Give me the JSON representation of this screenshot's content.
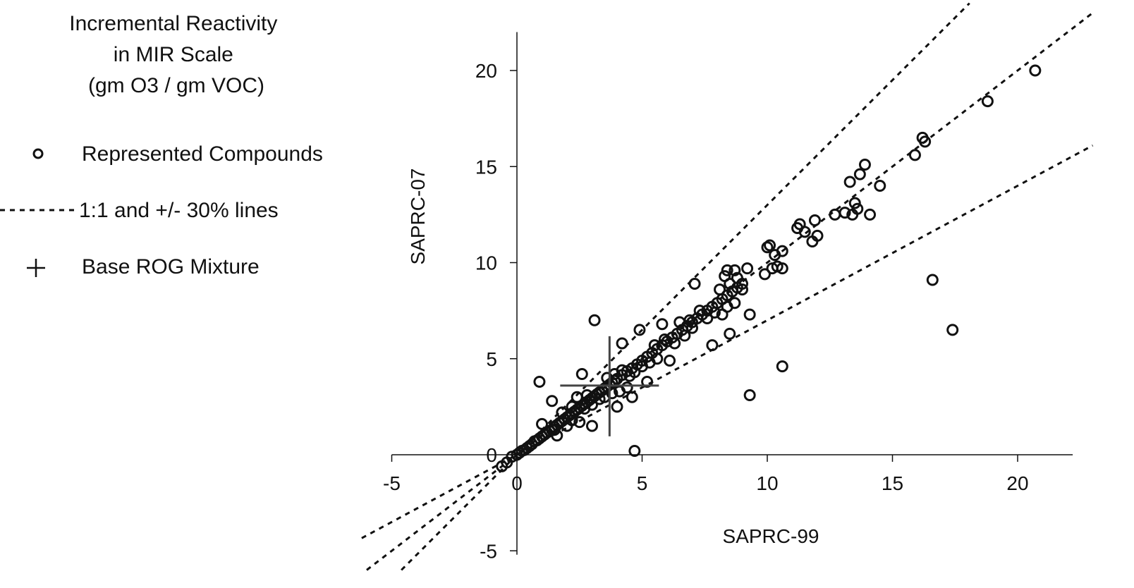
{
  "chart_data": {
    "type": "scatter",
    "title": "Incremental Reactivity\nin MIR Scale\n(gm O3 / gm VOC)",
    "xlabel": "SAPRC-99",
    "ylabel": "SAPRC-07",
    "xlim": [
      -5,
      22
    ],
    "ylim": [
      -5.5,
      22
    ],
    "x_ticks": [
      -5,
      0,
      5,
      10,
      15,
      20
    ],
    "y_ticks": [
      -5,
      0,
      5,
      10,
      15,
      20
    ],
    "grid": false,
    "legend_position": "top-left",
    "legend": [
      {
        "symbol": "open-circle",
        "label": "Represented Compounds"
      },
      {
        "symbol": "dotted-line",
        "label": "1:1 and +/- 30% lines"
      },
      {
        "symbol": "plus",
        "label": "Base ROG Mixture"
      }
    ],
    "reference_lines": [
      {
        "name": "+30%",
        "slope": 1.3
      },
      {
        "name": "1:1",
        "slope": 1.0
      },
      {
        "name": "-30%",
        "slope": 0.7
      }
    ],
    "base_rog_mixture": {
      "x": 3.7,
      "y": 3.6
    },
    "series": [
      {
        "name": "Represented Compounds",
        "points": [
          [
            -0.6,
            -0.6
          ],
          [
            -0.4,
            -0.4
          ],
          [
            -0.2,
            -0.1
          ],
          [
            0.0,
            0.0
          ],
          [
            0.1,
            0.1
          ],
          [
            0.2,
            0.2
          ],
          [
            0.3,
            0.25
          ],
          [
            0.4,
            0.35
          ],
          [
            0.5,
            0.45
          ],
          [
            0.6,
            0.55
          ],
          [
            0.7,
            0.7
          ],
          [
            0.8,
            0.75
          ],
          [
            0.9,
            0.85
          ],
          [
            1.0,
            0.95
          ],
          [
            1.1,
            1.05
          ],
          [
            1.2,
            1.15
          ],
          [
            1.3,
            1.25
          ],
          [
            1.4,
            1.3
          ],
          [
            1.5,
            1.45
          ],
          [
            1.6,
            1.55
          ],
          [
            1.7,
            1.65
          ],
          [
            1.8,
            1.75
          ],
          [
            1.9,
            1.85
          ],
          [
            2.0,
            1.95
          ],
          [
            2.1,
            2.05
          ],
          [
            2.2,
            2.15
          ],
          [
            2.3,
            2.25
          ],
          [
            2.4,
            2.35
          ],
          [
            2.5,
            2.45
          ],
          [
            2.6,
            2.55
          ],
          [
            2.7,
            2.65
          ],
          [
            2.8,
            2.75
          ],
          [
            2.9,
            2.85
          ],
          [
            3.0,
            2.95
          ],
          [
            3.1,
            3.05
          ],
          [
            3.2,
            3.15
          ],
          [
            3.3,
            3.25
          ],
          [
            3.4,
            3.35
          ],
          [
            3.5,
            3.45
          ],
          [
            3.6,
            3.55
          ],
          [
            3.7,
            3.65
          ],
          [
            3.8,
            3.75
          ],
          [
            3.9,
            3.85
          ],
          [
            4.0,
            3.95
          ],
          [
            4.2,
            4.15
          ],
          [
            4.4,
            4.35
          ],
          [
            4.6,
            4.5
          ],
          [
            4.8,
            4.7
          ],
          [
            5.0,
            4.9
          ],
          [
            5.2,
            5.1
          ],
          [
            5.4,
            5.3
          ],
          [
            5.6,
            5.5
          ],
          [
            5.8,
            5.7
          ],
          [
            6.0,
            5.9
          ],
          [
            6.2,
            6.1
          ],
          [
            6.4,
            6.3
          ],
          [
            6.6,
            6.5
          ],
          [
            6.8,
            6.7
          ],
          [
            7.0,
            6.9
          ],
          [
            7.2,
            7.1
          ],
          [
            7.4,
            7.3
          ],
          [
            7.6,
            7.5
          ],
          [
            7.8,
            7.7
          ],
          [
            8.0,
            7.9
          ],
          [
            8.2,
            8.1
          ],
          [
            8.4,
            8.3
          ],
          [
            8.6,
            8.5
          ],
          [
            8.8,
            8.7
          ],
          [
            9.0,
            8.9
          ],
          [
            1.0,
            1.6
          ],
          [
            1.5,
            1.3
          ],
          [
            2.0,
            1.5
          ],
          [
            2.5,
            1.7
          ],
          [
            1.8,
            2.2
          ],
          [
            2.2,
            2.5
          ],
          [
            2.7,
            2.4
          ],
          [
            3.0,
            2.6
          ],
          [
            3.3,
            2.9
          ],
          [
            2.4,
            3.0
          ],
          [
            2.8,
            3.1
          ],
          [
            3.5,
            3.0
          ],
          [
            3.8,
            3.2
          ],
          [
            4.1,
            3.3
          ],
          [
            4.4,
            3.5
          ],
          [
            3.6,
            4.0
          ],
          [
            3.9,
            4.2
          ],
          [
            4.2,
            4.4
          ],
          [
            4.5,
            4.1
          ],
          [
            4.7,
            4.3
          ],
          [
            5.0,
            4.6
          ],
          [
            5.3,
            4.8
          ],
          [
            5.6,
            5.0
          ],
          [
            5.5,
            5.7
          ],
          [
            5.9,
            6.0
          ],
          [
            6.3,
            5.8
          ],
          [
            6.7,
            6.2
          ],
          [
            7.0,
            6.6
          ],
          [
            6.5,
            6.9
          ],
          [
            6.9,
            7.0
          ],
          [
            7.3,
            7.5
          ],
          [
            7.6,
            7.1
          ],
          [
            7.9,
            7.4
          ],
          [
            8.2,
            7.3
          ],
          [
            8.4,
            7.7
          ],
          [
            8.7,
            7.9
          ],
          [
            8.1,
            8.6
          ],
          [
            8.5,
            8.9
          ],
          [
            8.8,
            9.2
          ],
          [
            9.0,
            8.6
          ],
          [
            8.3,
            9.3
          ],
          [
            8.7,
            9.6
          ],
          [
            9.2,
            9.7
          ],
          [
            9.9,
            9.4
          ],
          [
            10.2,
            9.7
          ],
          [
            10.4,
            9.8
          ],
          [
            10.6,
            9.7
          ],
          [
            10.3,
            10.4
          ],
          [
            10.6,
            10.6
          ],
          [
            10.1,
            10.9
          ],
          [
            11.2,
            11.8
          ],
          [
            11.5,
            11.6
          ],
          [
            11.8,
            11.1
          ],
          [
            12.0,
            11.4
          ],
          [
            11.9,
            12.2
          ],
          [
            11.3,
            12.0
          ],
          [
            12.7,
            12.5
          ],
          [
            13.1,
            12.6
          ],
          [
            13.4,
            12.5
          ],
          [
            13.6,
            12.8
          ],
          [
            13.3,
            14.2
          ],
          [
            13.7,
            14.6
          ],
          [
            13.9,
            15.1
          ],
          [
            14.1,
            12.5
          ],
          [
            14.5,
            14.0
          ],
          [
            13.5,
            13.1
          ],
          [
            15.9,
            15.6
          ],
          [
            16.3,
            16.3
          ],
          [
            16.2,
            16.5
          ],
          [
            18.8,
            18.4
          ],
          [
            20.7,
            20.0
          ],
          [
            0.9,
            3.8
          ],
          [
            3.1,
            7.0
          ],
          [
            1.4,
            2.8
          ],
          [
            2.6,
            4.2
          ],
          [
            3.0,
            1.5
          ],
          [
            4.7,
            0.2
          ],
          [
            4.2,
            5.8
          ],
          [
            4.9,
            6.5
          ],
          [
            5.8,
            6.8
          ],
          [
            7.1,
            8.9
          ],
          [
            8.4,
            9.6
          ],
          [
            9.3,
            7.3
          ],
          [
            10.0,
            10.8
          ],
          [
            9.3,
            3.1
          ],
          [
            10.6,
            4.6
          ],
          [
            16.6,
            9.1
          ],
          [
            17.4,
            6.5
          ],
          [
            4.0,
            2.5
          ],
          [
            4.6,
            3.0
          ],
          [
            5.2,
            3.8
          ],
          [
            7.8,
            5.7
          ],
          [
            8.5,
            6.3
          ],
          [
            6.1,
            4.9
          ],
          [
            2.2,
            1.8
          ],
          [
            1.6,
            1.0
          ]
        ]
      }
    ]
  }
}
